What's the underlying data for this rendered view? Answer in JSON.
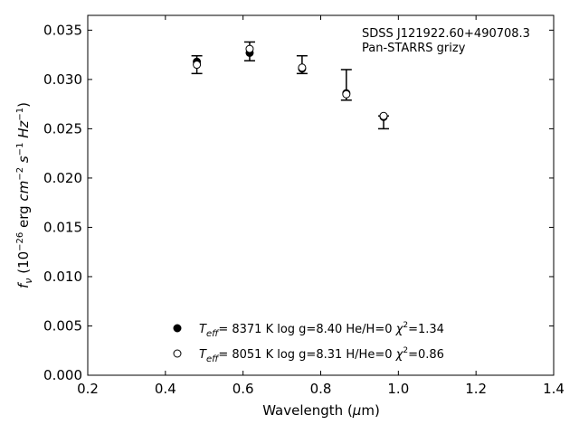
{
  "chart_data": {
    "type": "scatter",
    "title": "",
    "xlabel": "Wavelength (μm)",
    "ylabel": "f_ν (10^-26 erg cm^-2 s^-1 Hz^-1)",
    "xlim": [
      0.2,
      1.4
    ],
    "ylim": [
      0.0,
      0.0365
    ],
    "xticks": [
      0.2,
      0.4,
      0.6,
      0.8,
      1.0,
      1.2,
      1.4
    ],
    "xtick_labels": [
      "0.2",
      "0.4",
      "0.6",
      "0.8",
      "1.0",
      "1.2",
      "1.4"
    ],
    "yticks": [
      0.0,
      0.005,
      0.01,
      0.015,
      0.02,
      0.025,
      0.03,
      0.035
    ],
    "ytick_labels": [
      "0.000",
      "0.005",
      "0.010",
      "0.015",
      "0.020",
      "0.025",
      "0.030",
      "0.035"
    ],
    "grid": false,
    "annotation": {
      "line1": "SDSS J121922.60+490708.3",
      "line2": "Pan-STARRS grizy"
    },
    "observed": {
      "x": [
        0.481,
        0.617,
        0.752,
        0.866,
        0.962
      ],
      "y": [
        0.0315,
        0.0329,
        0.0313,
        0.0295,
        0.0259
      ],
      "yerr_low": [
        0.0009,
        0.001,
        0.0007,
        0.0016,
        0.0009
      ],
      "yerr_high": [
        0.0009,
        0.0009,
        0.0011,
        0.0015,
        0.0004
      ]
    },
    "series": [
      {
        "name": "T_eff= 8371 K log g=8.40 He/H=0 χ²=1.34",
        "marker": "filled-circle",
        "x": [
          0.481,
          0.617,
          0.752,
          0.866,
          0.962
        ],
        "y": [
          0.0318,
          0.0327,
          0.0311,
          0.0286,
          0.0262
        ]
      },
      {
        "name": "T_eff= 8051 K log g=8.31 H/He=0 χ²=0.86",
        "marker": "open-circle",
        "x": [
          0.481,
          0.617,
          0.752,
          0.866,
          0.962
        ],
        "y": [
          0.0315,
          0.0331,
          0.0312,
          0.0285,
          0.0263
        ]
      }
    ],
    "legend": {
      "placement": "bottom-center",
      "entries": [
        {
          "teff_label": "T",
          "teff_sub": "eff",
          "rest": "= 8371 K log g=8.40 He/H=0 ",
          "chi": "χ",
          "chi_sup": "2",
          "chi_val": "=1.34"
        },
        {
          "teff_label": "T",
          "teff_sub": "eff",
          "rest": "= 8051 K log g=8.31 H/He=0 ",
          "chi": "χ",
          "chi_sup": "2",
          "chi_val": "=0.86"
        }
      ]
    },
    "colors": {
      "markers": "#000000",
      "axes": "#000000"
    }
  }
}
